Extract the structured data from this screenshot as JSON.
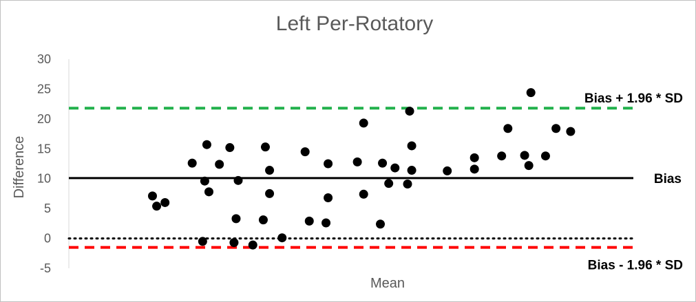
{
  "chart_data": {
    "type": "scatter",
    "title": "Left Per-Rotatory",
    "xlabel": "Mean",
    "ylabel": "Difference",
    "ylim": [
      -5,
      30
    ],
    "yticks": [
      30,
      25,
      20,
      15,
      10,
      5,
      0,
      -5
    ],
    "x_axis_ticks_shown": false,
    "grid": false,
    "point_color": "#000000",
    "reference_lines": [
      {
        "label": "Bias + 1.96 * SD",
        "y": 21.8,
        "style": "dashed",
        "color": "#22b14c"
      },
      {
        "label": "Bias",
        "y": 10.1,
        "style": "solid",
        "color": "#000000"
      },
      {
        "label": "",
        "y": 0,
        "style": "dotted",
        "color": "#000000"
      },
      {
        "label": "Bias - 1.96 * SD",
        "y": -1.5,
        "style": "dashed",
        "color": "#ff0000"
      }
    ],
    "points": [
      {
        "x": 4.0,
        "y": 7.1
      },
      {
        "x": 4.2,
        "y": 5.4
      },
      {
        "x": 4.6,
        "y": 6.0
      },
      {
        "x": 5.9,
        "y": 12.6
      },
      {
        "x": 6.6,
        "y": 15.7
      },
      {
        "x": 7.2,
        "y": 12.4
      },
      {
        "x": 7.7,
        "y": 15.2
      },
      {
        "x": 6.5,
        "y": 9.6
      },
      {
        "x": 6.7,
        "y": 7.8
      },
      {
        "x": 8.1,
        "y": 9.7
      },
      {
        "x": 8.0,
        "y": 3.3
      },
      {
        "x": 9.3,
        "y": 3.1
      },
      {
        "x": 9.4,
        "y": 15.3
      },
      {
        "x": 9.6,
        "y": 11.4
      },
      {
        "x": 9.6,
        "y": 7.5
      },
      {
        "x": 6.4,
        "y": -0.5
      },
      {
        "x": 7.9,
        "y": -0.7
      },
      {
        "x": 8.8,
        "y": -1.1
      },
      {
        "x": 10.2,
        "y": 0.1
      },
      {
        "x": 11.3,
        "y": 14.5
      },
      {
        "x": 11.5,
        "y": 2.9
      },
      {
        "x": 12.4,
        "y": 12.5
      },
      {
        "x": 12.4,
        "y": 6.8
      },
      {
        "x": 12.3,
        "y": 2.6
      },
      {
        "x": 13.8,
        "y": 12.8
      },
      {
        "x": 14.1,
        "y": 19.3
      },
      {
        "x": 14.1,
        "y": 7.4
      },
      {
        "x": 14.9,
        "y": 2.4
      },
      {
        "x": 15.0,
        "y": 12.6
      },
      {
        "x": 15.3,
        "y": 9.2
      },
      {
        "x": 15.6,
        "y": 11.8
      },
      {
        "x": 16.2,
        "y": 9.1
      },
      {
        "x": 16.4,
        "y": 11.4
      },
      {
        "x": 16.4,
        "y": 15.5
      },
      {
        "x": 16.3,
        "y": 21.3
      },
      {
        "x": 18.1,
        "y": 11.3
      },
      {
        "x": 19.4,
        "y": 11.6
      },
      {
        "x": 19.4,
        "y": 13.5
      },
      {
        "x": 20.7,
        "y": 13.8
      },
      {
        "x": 21.0,
        "y": 18.4
      },
      {
        "x": 21.8,
        "y": 13.9
      },
      {
        "x": 22.0,
        "y": 12.2
      },
      {
        "x": 22.1,
        "y": 24.4
      },
      {
        "x": 22.8,
        "y": 13.8
      },
      {
        "x": 23.3,
        "y": 18.4
      },
      {
        "x": 24.0,
        "y": 17.9
      }
    ]
  }
}
